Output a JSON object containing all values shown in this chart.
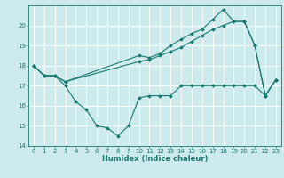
{
  "xlabel": "Humidex (Indice chaleur)",
  "xlim": [
    -0.5,
    23.5
  ],
  "ylim": [
    14,
    21
  ],
  "yticks": [
    14,
    15,
    16,
    17,
    18,
    19,
    20
  ],
  "xticks": [
    0,
    1,
    2,
    3,
    4,
    5,
    6,
    7,
    8,
    9,
    10,
    11,
    12,
    13,
    14,
    15,
    16,
    17,
    18,
    19,
    20,
    21,
    22,
    23
  ],
  "bg_color": "#cdeaed",
  "grid_color": "#ffffff",
  "line_color": "#1a7a6e",
  "line1_x": [
    0,
    1,
    2,
    3,
    4,
    5,
    6,
    7,
    8,
    9,
    10,
    11,
    12,
    13,
    14,
    15,
    16,
    17,
    18,
    19,
    20,
    21,
    22,
    23
  ],
  "line1_y": [
    18.0,
    17.5,
    17.5,
    17.0,
    16.2,
    15.8,
    15.0,
    14.9,
    14.5,
    15.0,
    16.4,
    16.5,
    16.5,
    16.5,
    17.0,
    17.0,
    17.0,
    17.0,
    17.0,
    17.0,
    17.0,
    17.0,
    16.5,
    17.3
  ],
  "line2_x": [
    0,
    1,
    2,
    3,
    10,
    11,
    12,
    13,
    14,
    15,
    16,
    17,
    18,
    19,
    20,
    21,
    22,
    23
  ],
  "line2_y": [
    18.0,
    17.5,
    17.5,
    17.2,
    18.2,
    18.3,
    18.5,
    18.7,
    18.9,
    19.2,
    19.5,
    19.8,
    20.0,
    20.2,
    20.2,
    19.0,
    16.5,
    17.3
  ],
  "line3_x": [
    0,
    1,
    2,
    3,
    10,
    11,
    12,
    13,
    14,
    15,
    16,
    17,
    18,
    19,
    20,
    21,
    22,
    23
  ],
  "line3_y": [
    18.0,
    17.5,
    17.5,
    17.2,
    18.5,
    18.4,
    18.6,
    19.0,
    19.3,
    19.6,
    19.8,
    20.3,
    20.8,
    20.2,
    20.2,
    19.0,
    16.5,
    17.3
  ]
}
